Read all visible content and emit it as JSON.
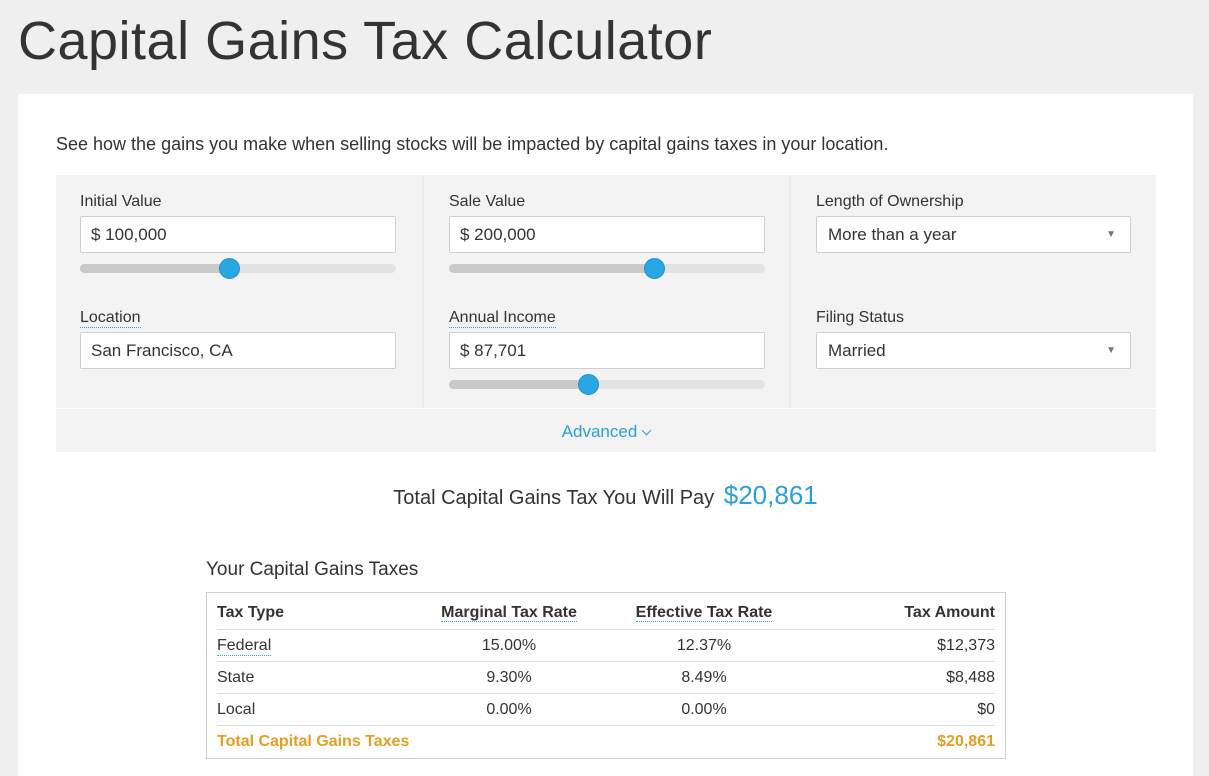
{
  "page": {
    "title": "Capital Gains Tax Calculator"
  },
  "intro": "See how the gains you make when selling stocks will be impacted by capital gains taxes in your location.",
  "fields": {
    "initial_value": {
      "label": "Initial Value",
      "value": "$ 100,000",
      "slider_fraction": 0.47
    },
    "sale_value": {
      "label": "Sale Value",
      "value": "$ 200,000",
      "slider_fraction": 0.65
    },
    "length_of_ownership": {
      "label": "Length of Ownership",
      "value": "More than a year"
    },
    "location": {
      "label": "Location",
      "value": "San Francisco, CA"
    },
    "annual_income": {
      "label": "Annual Income",
      "value": "$ 87,701",
      "slider_fraction": 0.44
    },
    "filing_status": {
      "label": "Filing Status",
      "value": "Married"
    }
  },
  "advanced": {
    "label": "Advanced"
  },
  "total": {
    "label": "Total Capital Gains Tax You Will Pay",
    "amount": "$20,861"
  },
  "table": {
    "title": "Your Capital Gains Taxes",
    "headers": {
      "type": "Tax Type",
      "marginal": "Marginal Tax Rate",
      "effective": "Effective Tax Rate",
      "amount": "Tax Amount"
    },
    "rows": [
      {
        "type": "Federal",
        "marginal": "15.00%",
        "effective": "12.37%",
        "amount": "$12,373"
      },
      {
        "type": "State",
        "marginal": "9.30%",
        "effective": "8.49%",
        "amount": "$8,488"
      },
      {
        "type": "Local",
        "marginal": "0.00%",
        "effective": "0.00%",
        "amount": "$0"
      }
    ],
    "total": {
      "type": "Total Capital Gains Taxes",
      "amount": "$20,861"
    }
  },
  "colors": {
    "accent": "#2a9fd8",
    "total_row": "#e39f22"
  }
}
